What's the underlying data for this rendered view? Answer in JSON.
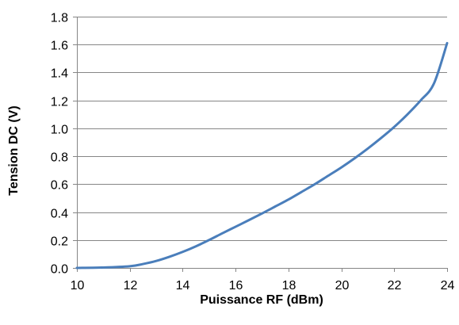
{
  "chart_data": {
    "type": "line",
    "title": "",
    "xlabel": "Puissance RF (dBm)",
    "ylabel": "Tension DC (V)",
    "xlim": [
      10,
      24
    ],
    "ylim": [
      0,
      1.8
    ],
    "x_ticks": [
      10,
      12,
      14,
      16,
      18,
      20,
      22,
      24
    ],
    "x_tick_labels": [
      "10",
      "12",
      "14",
      "16",
      "18",
      "20",
      "22",
      "24"
    ],
    "y_ticks": [
      0,
      0.2,
      0.4,
      0.6,
      0.8,
      1.0,
      1.2,
      1.4,
      1.6,
      1.8
    ],
    "y_tick_labels": [
      "0.0",
      "0.2",
      "0.4",
      "0.6",
      "0.8",
      "1.0",
      "1.2",
      "1.4",
      "1.6",
      "1.8"
    ],
    "grid": "horizontal",
    "legend": "none",
    "series": [
      {
        "color": "#4a7ebb",
        "x": [
          10,
          11,
          12,
          12.5,
          13,
          13.5,
          14,
          14.5,
          15,
          15.5,
          16,
          16.5,
          17,
          17.5,
          18,
          18.5,
          19,
          19.5,
          20,
          20.5,
          21,
          21.5,
          22,
          22.5,
          23,
          23.5,
          24
        ],
        "y": [
          0.0,
          0.003,
          0.012,
          0.028,
          0.05,
          0.08,
          0.115,
          0.155,
          0.2,
          0.248,
          0.295,
          0.342,
          0.39,
          0.44,
          0.49,
          0.545,
          0.6,
          0.66,
          0.72,
          0.785,
          0.855,
          0.93,
          1.01,
          1.1,
          1.2,
          1.32,
          1.61
        ]
      }
    ]
  }
}
